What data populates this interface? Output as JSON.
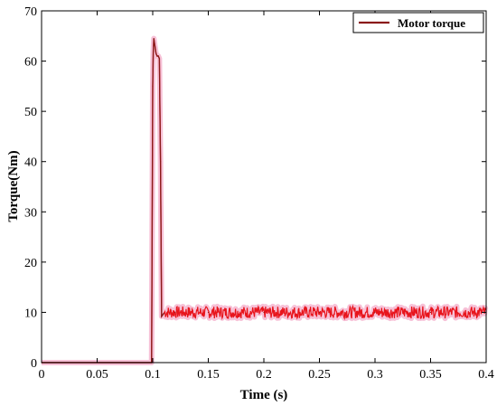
{
  "chart_data": {
    "type": "line",
    "xlabel": "Time (s)",
    "ylabel": "Torque(Nm)",
    "xlim": [
      0,
      0.4
    ],
    "ylim": [
      0,
      70
    ],
    "xticks": [
      0,
      0.05,
      0.1,
      0.15,
      0.2,
      0.25,
      0.3,
      0.35,
      0.4
    ],
    "xtick_labels": [
      "0",
      "0.05",
      "0.1",
      "0.15",
      "0.2",
      "0.25",
      "0.3",
      "0.35",
      "0.4"
    ],
    "yticks": [
      0,
      10,
      20,
      30,
      40,
      50,
      60,
      70
    ],
    "ytick_labels": [
      "0",
      "10",
      "20",
      "30",
      "40",
      "50",
      "60",
      "70"
    ],
    "grid": false,
    "legend_position": "top-right",
    "series": [
      {
        "name": "Motor torque",
        "color": "#c0392b",
        "points": [
          [
            0,
            0
          ],
          [
            0.099,
            0
          ],
          [
            0.1,
            55
          ],
          [
            0.1005,
            62
          ],
          [
            0.101,
            64.5
          ],
          [
            0.102,
            63
          ],
          [
            0.103,
            61.5
          ],
          [
            0.104,
            61
          ],
          [
            0.105,
            61
          ],
          [
            0.106,
            60.5
          ],
          [
            0.107,
            40
          ],
          [
            0.108,
            9.2
          ],
          [
            0.11,
            9.8
          ],
          [
            0.12,
            10
          ],
          [
            0.15,
            10
          ],
          [
            0.2,
            10
          ],
          [
            0.25,
            10
          ],
          [
            0.3,
            10
          ],
          [
            0.35,
            10
          ],
          [
            0.4,
            10
          ]
        ],
        "steady_state_value": 10,
        "ripple_amplitude": 1.2
      }
    ]
  }
}
